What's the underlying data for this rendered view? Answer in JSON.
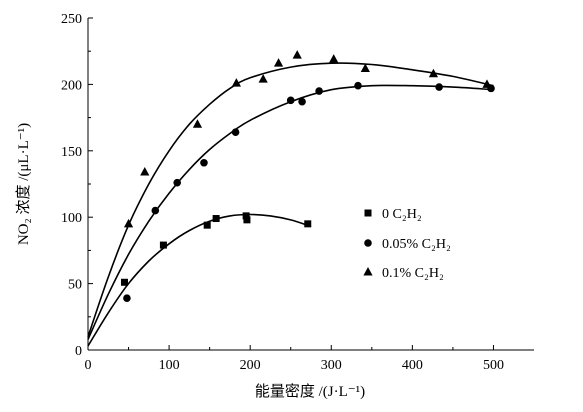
{
  "chart_data": {
    "type": "scatter",
    "xlabel": "能量密度 /(J·L⁻¹)",
    "ylabel": "NO₂ 浓度 /(μL·L⁻¹)",
    "xlim": [
      0,
      550
    ],
    "ylim": [
      0,
      250
    ],
    "x_ticks": [
      "0",
      "100",
      "200",
      "300",
      "400",
      "500"
    ],
    "y_ticks": [
      "0",
      "50",
      "100",
      "150",
      "200",
      "250"
    ],
    "grid": false,
    "legend_position": "right-center",
    "series": [
      {
        "name": "0  C₂H₂",
        "marker": "square",
        "points": [
          [
            45,
            51
          ],
          [
            93,
            79
          ],
          [
            147,
            94
          ],
          [
            158,
            99
          ],
          [
            195,
            101
          ],
          [
            196,
            98
          ],
          [
            271,
            95
          ]
        ],
        "fit": [
          [
            0,
            3
          ],
          [
            25,
            28
          ],
          [
            50,
            50
          ],
          [
            75,
            67
          ],
          [
            100,
            80
          ],
          [
            125,
            90
          ],
          [
            150,
            97
          ],
          [
            175,
            101
          ],
          [
            200,
            102
          ],
          [
            225,
            101
          ],
          [
            250,
            98
          ],
          [
            275,
            93
          ]
        ]
      },
      {
        "name": "0.05% C₂H₂",
        "marker": "circle",
        "points": [
          [
            48,
            39
          ],
          [
            83,
            105
          ],
          [
            110,
            126
          ],
          [
            143,
            141
          ],
          [
            182,
            164
          ],
          [
            250,
            188
          ],
          [
            264,
            187
          ],
          [
            285,
            195
          ],
          [
            333,
            199
          ],
          [
            433,
            198
          ],
          [
            497,
            197
          ]
        ],
        "fit": [
          [
            0,
            8
          ],
          [
            25,
            42
          ],
          [
            50,
            72
          ],
          [
            75,
            97
          ],
          [
            100,
            118
          ],
          [
            125,
            136
          ],
          [
            150,
            151
          ],
          [
            175,
            163
          ],
          [
            200,
            173
          ],
          [
            250,
            187
          ],
          [
            300,
            196
          ],
          [
            350,
            199
          ],
          [
            400,
            199
          ],
          [
            450,
            198
          ],
          [
            500,
            196
          ]
        ]
      },
      {
        "name": "0.1%  C₂H₂",
        "marker": "triangle",
        "points": [
          [
            50,
            95
          ],
          [
            70,
            134
          ],
          [
            135,
            170
          ],
          [
            183,
            201
          ],
          [
            216,
            204
          ],
          [
            235,
            216
          ],
          [
            258,
            222
          ],
          [
            303,
            219
          ],
          [
            342,
            212
          ],
          [
            426,
            208
          ],
          [
            492,
            200
          ]
        ],
        "fit": [
          [
            0,
            10
          ],
          [
            25,
            55
          ],
          [
            50,
            94
          ],
          [
            75,
            125
          ],
          [
            100,
            150
          ],
          [
            125,
            170
          ],
          [
            150,
            185
          ],
          [
            175,
            197
          ],
          [
            200,
            205
          ],
          [
            250,
            213
          ],
          [
            300,
            216
          ],
          [
            350,
            215
          ],
          [
            400,
            211
          ],
          [
            450,
            206
          ],
          [
            500,
            199
          ]
        ]
      }
    ]
  }
}
